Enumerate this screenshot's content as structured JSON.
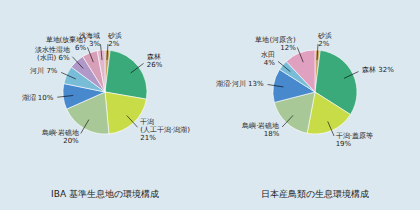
{
  "chart_data": [
    {
      "type": "pie",
      "title": "IBA 基準生息地の環境構成",
      "categories": [
        "砂浜\n2%",
        "森林\n26%",
        "干潟\n(人工干潟·潟湖)\n21%",
        "島嶼·岩礁地\n20%",
        "湖沼 10%",
        "河川 7%",
        "淡水性湿地\n(水田) 6%",
        "草地(放棄地)\n6%",
        "浅海域\n3%"
      ],
      "values": [
        2,
        26,
        21,
        20,
        10,
        7,
        6,
        6,
        3
      ],
      "colors": [
        "#c8a86c",
        "#3aaa7a",
        "#c8dc48",
        "#a8c898",
        "#4888cc",
        "#78bcd8",
        "#b098c8",
        "#d8a0b8",
        "#e0b8cc"
      ]
    },
    {
      "type": "pie",
      "title": "日本産鳥類の生息環境構成",
      "categories": [
        "砂浜\n2%",
        "森林 32%",
        "干潟·蓋原等\n19%",
        "島嶼·岩礁地\n18%",
        "湖沼·河川 13%",
        "水田\n4%",
        "草地(河原含)\n12%"
      ],
      "values": [
        2,
        32,
        19,
        18,
        13,
        4,
        12
      ],
      "colors": [
        "#c8a86c",
        "#3aaa7a",
        "#c8dc48",
        "#a8c898",
        "#4888cc",
        "#78bcd8",
        "#e0a0c0"
      ]
    }
  ]
}
